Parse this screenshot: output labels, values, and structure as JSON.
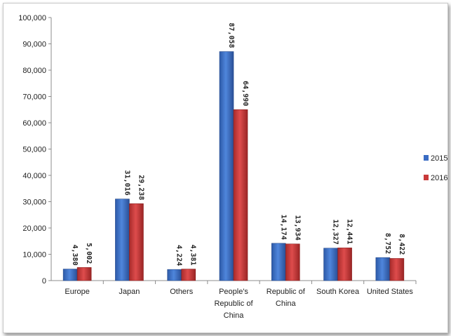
{
  "chart_data": {
    "type": "bar",
    "title": "",
    "xlabel": "",
    "ylabel": "",
    "ylim": [
      0,
      100000
    ],
    "y_ticks": [
      "0",
      "10,000",
      "20,000",
      "30,000",
      "40,000",
      "50,000",
      "60,000",
      "70,000",
      "80,000",
      "90,000",
      "100,000"
    ],
    "categories": [
      [
        "Europe"
      ],
      [
        "Japan"
      ],
      [
        "Others"
      ],
      [
        "People's",
        "Republic of",
        "China"
      ],
      [
        "Republic of",
        "China"
      ],
      [
        "South Korea"
      ],
      [
        "United States"
      ]
    ],
    "series": [
      {
        "name": "2015",
        "color": "#3a6cc4",
        "values": [
          4380,
          31016,
          4224,
          87058,
          14174,
          12327,
          8752
        ],
        "labels": [
          "4,380",
          "31,016",
          "4,224",
          "87,058",
          "14,174",
          "12,327",
          "8,752"
        ]
      },
      {
        "name": "2016",
        "color": "#c93a3a",
        "values": [
          5002,
          29238,
          4381,
          64990,
          13934,
          12441,
          8422
        ],
        "labels": [
          "5,002",
          "29,238",
          "4,381",
          "64,990",
          "13,934",
          "12,441",
          "8,422"
        ]
      }
    ],
    "grid": false,
    "legend_position": "right"
  }
}
